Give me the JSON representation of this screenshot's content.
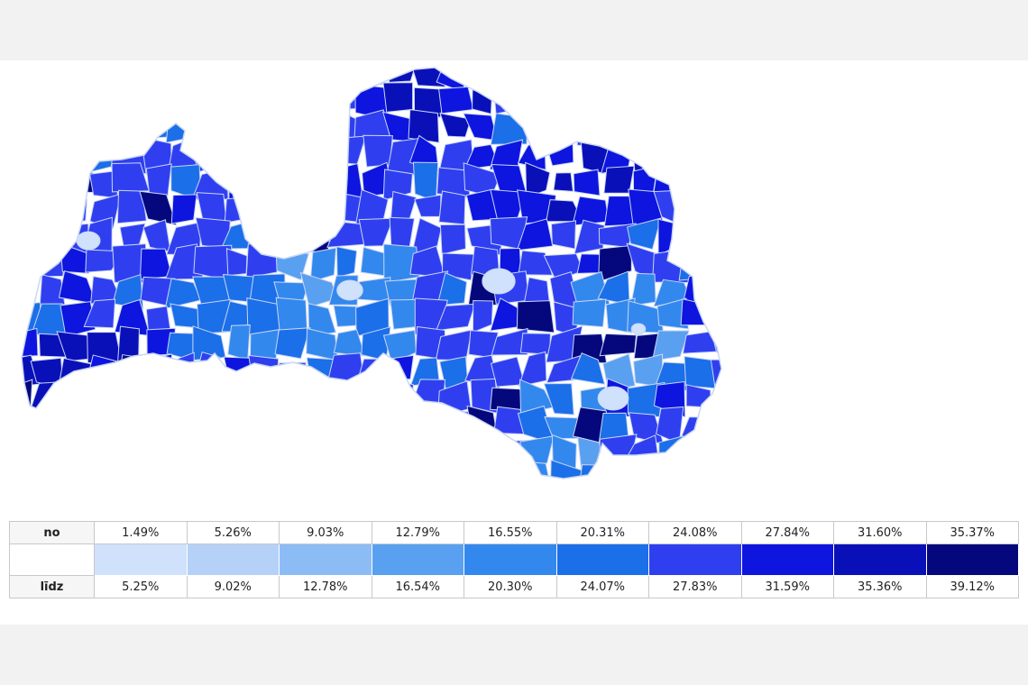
{
  "legend": {
    "from_label": "no",
    "to_label": "līdz",
    "bins": [
      {
        "from": "1.49%",
        "to": "5.25%",
        "color": "#cfe1fb"
      },
      {
        "from": "5.26%",
        "to": "9.02%",
        "color": "#b5d1f8"
      },
      {
        "from": "9.03%",
        "to": "12.78%",
        "color": "#8cbcf5"
      },
      {
        "from": "12.79%",
        "to": "16.54%",
        "color": "#5aa0f0"
      },
      {
        "from": "16.55%",
        "to": "20.30%",
        "color": "#3388ee"
      },
      {
        "from": "20.31%",
        "to": "24.07%",
        "color": "#1b6fe8"
      },
      {
        "from": "24.08%",
        "to": "27.83%",
        "color": "#2f3ff0"
      },
      {
        "from": "27.84%",
        "to": "31.59%",
        "color": "#0d15df"
      },
      {
        "from": "31.60%",
        "to": "35.36%",
        "color": "#0a10b8"
      },
      {
        "from": "35.37%",
        "to": "39.12%",
        "color": "#05087c"
      }
    ]
  },
  "map": {
    "border_color": "#c9d6f5"
  }
}
